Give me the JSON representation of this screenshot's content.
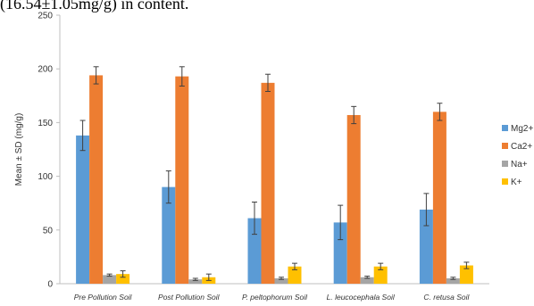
{
  "caption": "(16.54±1.05mg/g) in content.",
  "chart_data": {
    "type": "bar",
    "categories": [
      "Pre Pollution Soil",
      "Post Pollution Soil",
      "P. peltophorum Soil",
      "L. leucocephala Soil",
      "C. retusa Soil"
    ],
    "ylabel": "Mean ± SD (mg/g)",
    "xlabel": "",
    "ylim": [
      0,
      250
    ],
    "yticks": [
      0,
      50,
      100,
      150,
      200,
      250
    ],
    "grid": false,
    "legend_position": "right",
    "series": [
      {
        "name": "Mg2+",
        "color": "#5B9BD5",
        "values": [
          138,
          90,
          61,
          57,
          69
        ],
        "errors": [
          14,
          15,
          15,
          16,
          15
        ]
      },
      {
        "name": "Ca2+",
        "color": "#ED7D31",
        "values": [
          194,
          193,
          187,
          157,
          160
        ],
        "errors": [
          8,
          9,
          8,
          8,
          8
        ]
      },
      {
        "name": "Na+",
        "color": "#A5A5A5",
        "values": [
          8,
          4,
          5,
          6,
          5
        ],
        "errors": [
          1,
          1,
          1,
          1,
          1
        ]
      },
      {
        "name": "K+",
        "color": "#FFC000",
        "values": [
          9,
          6,
          16,
          16,
          17
        ],
        "errors": [
          3,
          3,
          3,
          3,
          3
        ]
      }
    ]
  }
}
